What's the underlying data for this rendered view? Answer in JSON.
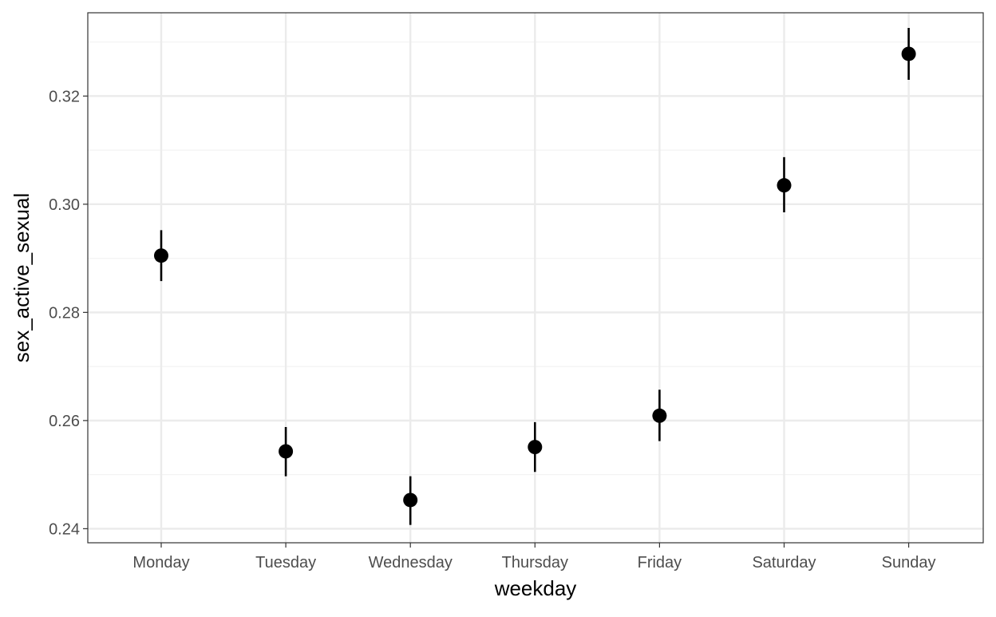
{
  "chart_data": {
    "type": "scatter",
    "subtype": "pointrange",
    "title": "",
    "xlabel": "weekday",
    "ylabel": "sex_active_sexual",
    "categories": [
      "Monday",
      "Tuesday",
      "Wednesday",
      "Thursday",
      "Friday",
      "Saturday",
      "Sunday"
    ],
    "values": [
      0.2905,
      0.2543,
      0.2453,
      0.2551,
      0.2609,
      0.3035,
      0.3278
    ],
    "lower": [
      0.2858,
      0.2497,
      0.2407,
      0.2505,
      0.2562,
      0.2985,
      0.323
    ],
    "upper": [
      0.2952,
      0.2588,
      0.2497,
      0.2597,
      0.2657,
      0.3087,
      0.3326
    ],
    "ylim": [
      0.2374,
      0.3354
    ],
    "y_ticks": [
      0.24,
      0.26,
      0.28,
      0.3,
      0.32
    ],
    "y_tick_labels": [
      "0.24",
      "0.26",
      "0.28",
      "0.30",
      "0.32"
    ],
    "grid": true,
    "legend": "none",
    "colors": {
      "point": "#000000",
      "panel_background": "#ffffff",
      "grid_major": "#ebebeb",
      "grid_minor": "#f3f3f3",
      "panel_border": "#333333",
      "tick_text": "#4d4d4d"
    }
  }
}
